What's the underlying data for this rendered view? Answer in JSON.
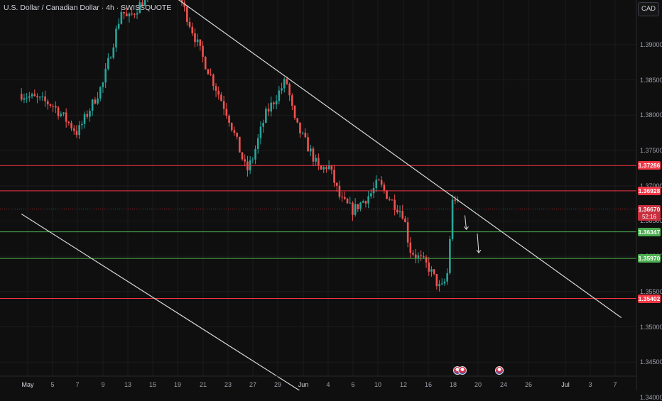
{
  "header": {
    "title": "U.S. Dollar / Canadian Dollar · 4h · SWISSQUOTE",
    "currency_button": "CAD"
  },
  "colors": {
    "background": "#0f0f0f",
    "bull": "#26a69a",
    "bear": "#ef5350",
    "resistance": "#f23645",
    "support": "#4caf50",
    "trendline": "#d8d8d8"
  },
  "icons": [
    "us-flag-icon",
    "canada-flag-icon",
    "down-arrow-icon"
  ],
  "chart_data": {
    "type": "candlestick",
    "symbol": "USDCAD",
    "timeframe": "4h",
    "ylim": [
      1.338,
      1.396
    ],
    "y_ticks": [
      "1.39000",
      "1.38500",
      "1.38000",
      "1.37500",
      "1.37000",
      "1.36500",
      "1.36000",
      "1.35500",
      "1.35000",
      "1.34500",
      "1.34000"
    ],
    "x_ticks": [
      "May",
      "5",
      "7",
      "9",
      "13",
      "15",
      "19",
      "21",
      "23",
      "27",
      "29",
      "Jun",
      "4",
      "6",
      "10",
      "12",
      "16",
      "18",
      "20",
      "24",
      "26",
      "Jul",
      "3",
      "7"
    ],
    "price_levels": [
      {
        "value": 1.37286,
        "label": "1.37286",
        "kind": "resistance"
      },
      {
        "value": 1.36928,
        "label": "1.36928",
        "kind": "resistance"
      },
      {
        "value": 1.36347,
        "label": "1.36347",
        "kind": "support"
      },
      {
        "value": 1.3597,
        "label": "1.35970",
        "kind": "support"
      },
      {
        "value": 1.35402,
        "label": "1.35402",
        "kind": "resistance"
      }
    ],
    "current_price": {
      "value": 1.3667,
      "label": "1.36670",
      "countdown": "52:16"
    },
    "trendlines": [
      {
        "name": "upper",
        "from": {
          "x": "May 15",
          "y": 1.399
        },
        "to": {
          "x": "Jul 8",
          "y": 1.3513
        }
      },
      {
        "name": "lower",
        "from": {
          "x": "Apr 30",
          "y": 1.366
        },
        "to": {
          "x": "Jun 4",
          "y": 1.3384
        }
      }
    ],
    "projection_arrows": [
      {
        "from": {
          "x": "Jun 19",
          "y": 1.3658
        },
        "to": {
          "x": "Jun 19",
          "y": 1.3638
        }
      },
      {
        "from": {
          "x": "Jun 20",
          "y": 1.3632
        },
        "to": {
          "x": "Jun 20",
          "y": 1.3605
        }
      }
    ],
    "path": [
      [
        "Apr 30",
        1.383
      ],
      [
        "May 5",
        1.3815
      ],
      [
        "May 7",
        1.3775
      ],
      [
        "May 9",
        1.3845
      ],
      [
        "May 12",
        1.395
      ],
      [
        "May 13",
        1.3935
      ],
      [
        "May 15",
        1.398
      ],
      [
        "May 19",
        1.3975
      ],
      [
        "May 21",
        1.388
      ],
      [
        "May 22",
        1.384
      ],
      [
        "May 23",
        1.38
      ],
      [
        "May 26",
        1.372
      ],
      [
        "May 27",
        1.374
      ],
      [
        "May 28",
        1.38
      ],
      [
        "May 30",
        1.385
      ],
      [
        "May 31",
        1.379
      ],
      [
        "Jun 2",
        1.3745
      ],
      [
        "Jun 3",
        1.372
      ],
      [
        "Jun 4",
        1.373
      ],
      [
        "Jun 5",
        1.368
      ],
      [
        "Jun 6",
        1.3665
      ],
      [
        "Jun 9",
        1.369
      ],
      [
        "Jun 10",
        1.3705
      ],
      [
        "Jun 11",
        1.368
      ],
      [
        "Jun 12",
        1.366
      ],
      [
        "Jun 13",
        1.361
      ],
      [
        "Jun 16",
        1.3585
      ],
      [
        "Jun 17",
        1.3552
      ],
      [
        "Jun 17b",
        1.357
      ],
      [
        "Jun 18",
        1.369
      ],
      [
        "Jun 18b",
        1.3667
      ]
    ]
  }
}
